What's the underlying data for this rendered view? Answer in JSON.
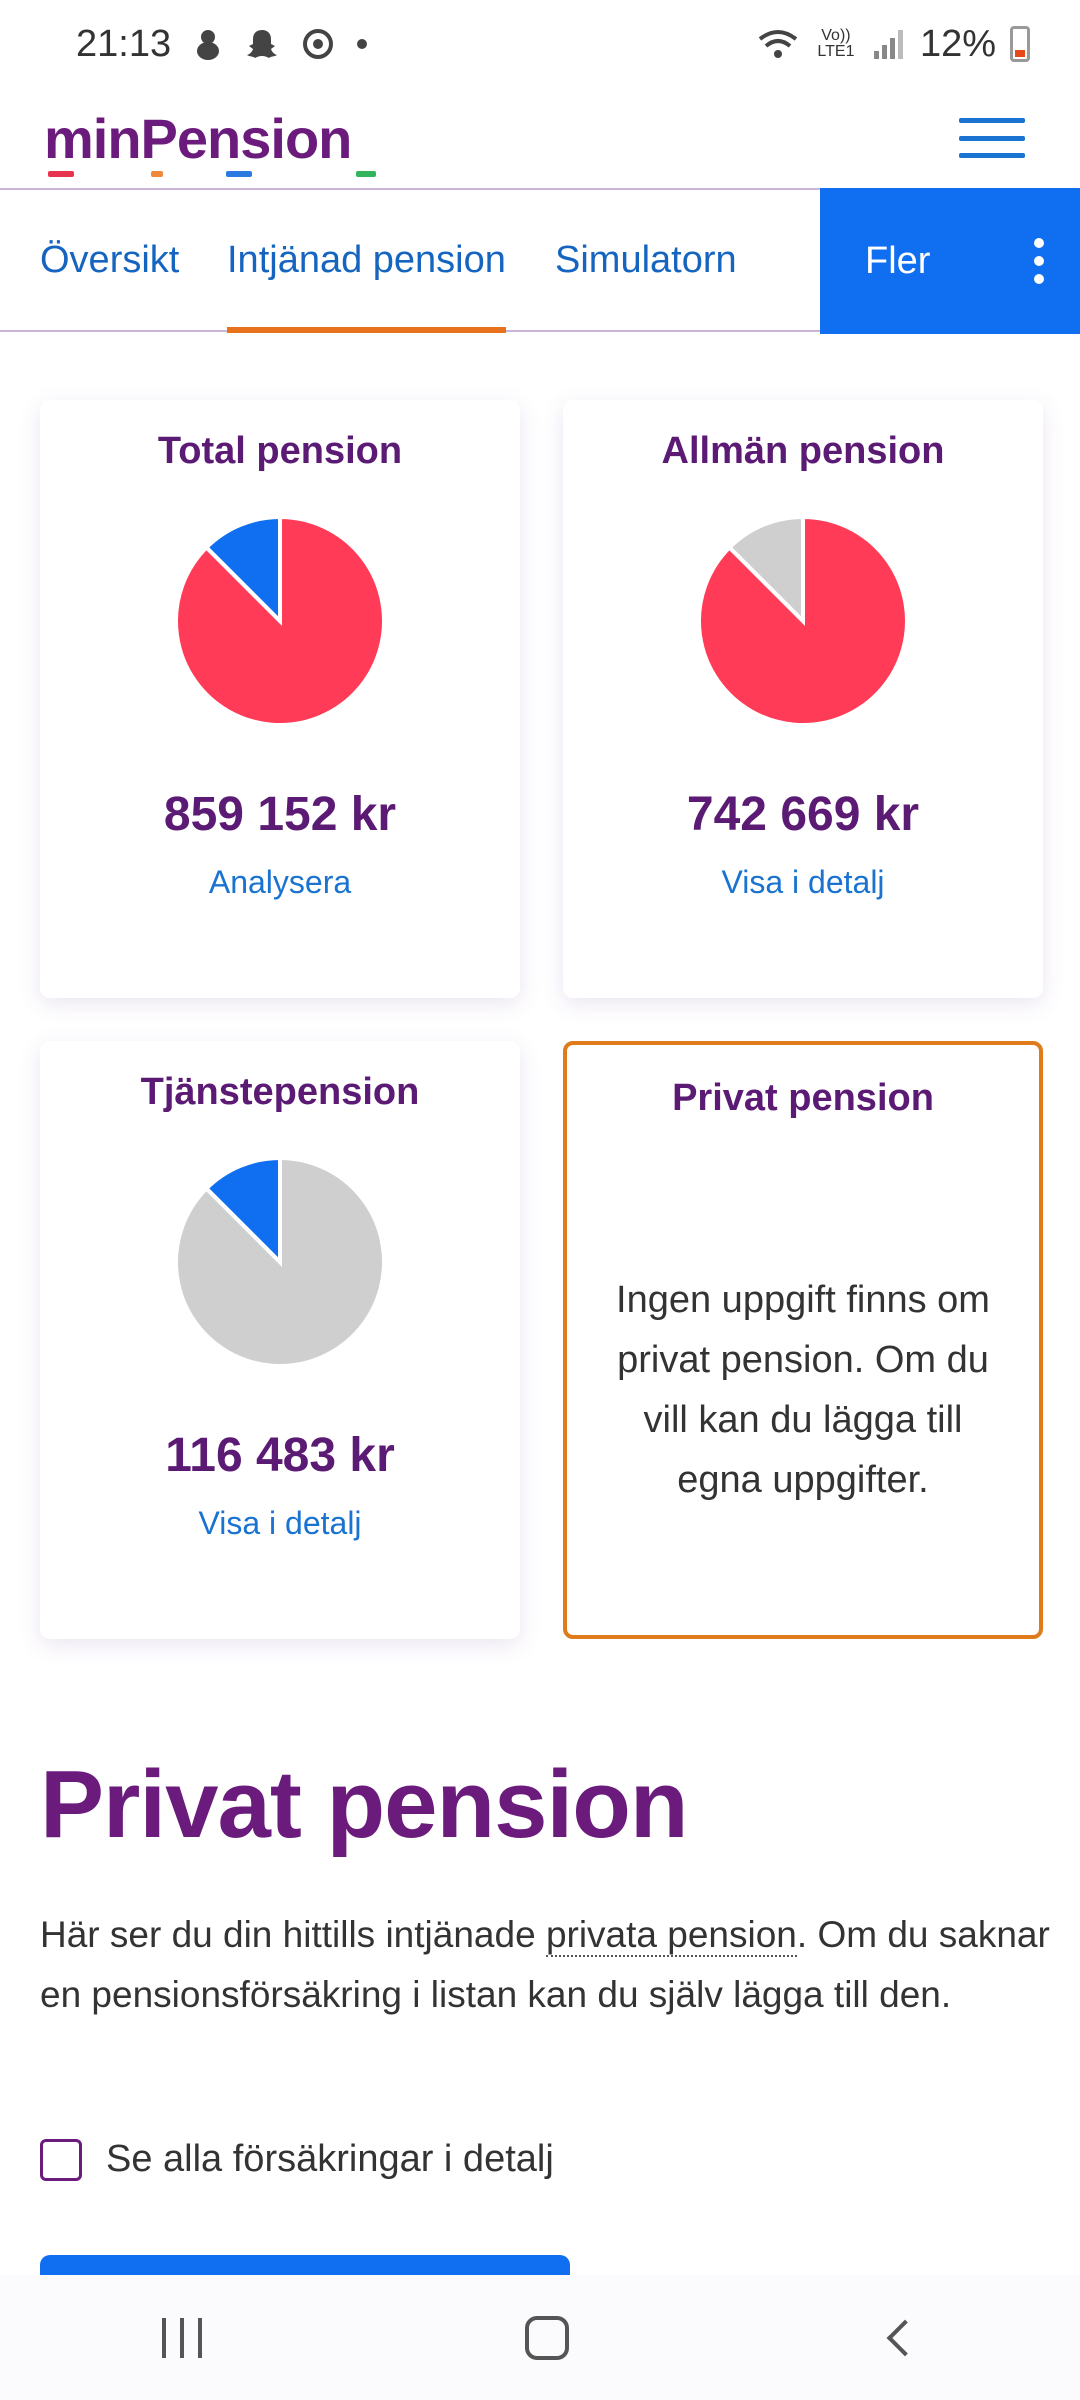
{
  "status_bar": {
    "time": "21:13",
    "network": "Vo)) LTE1",
    "battery": "12%"
  },
  "header": {
    "logo": "minPension",
    "logo_colors": [
      "#e8334f",
      "#f08a3a",
      "#2a7ae2",
      "#32b45a"
    ]
  },
  "tabs": {
    "overview": "Översikt",
    "earned": "Intjänad pension",
    "simulator": "Simulatorn",
    "more": "Fler"
  },
  "cards": [
    {
      "title": "Total pension",
      "amount": "859 152 kr",
      "link": "Analysera",
      "pie": [
        {
          "color": "#ff3b57",
          "fraction": 0.875
        },
        {
          "color": "#0f6ff0",
          "fraction": 0.125
        }
      ]
    },
    {
      "title": "Allmän pension",
      "amount": "742 669 kr",
      "link": "Visa i detalj",
      "pie": [
        {
          "color": "#ff3b57",
          "fraction": 0.875
        },
        {
          "color": "#cfcfcf",
          "fraction": 0.125
        }
      ]
    },
    {
      "title": "Tjänstepension",
      "amount": "116 483 kr",
      "link": "Visa i detalj",
      "pie": [
        {
          "color": "#cfcfcf",
          "fraction": 0.875
        },
        {
          "color": "#0f6ff0",
          "fraction": 0.125
        }
      ]
    },
    {
      "title": "Privat pension",
      "note": "Ingen uppgift finns om privat pension. Om du vill kan du lägga till egna uppgifter."
    }
  ],
  "section": {
    "title": "Privat pension",
    "para_before": "Här ser du din hittills intjänade ",
    "para_link": "privata pension",
    "para_after": ". Om du saknar en pensionsförsäkring i listan kan du själv lägga till den.",
    "checkbox_label": "Se alla försäkringar i detalj"
  }
}
